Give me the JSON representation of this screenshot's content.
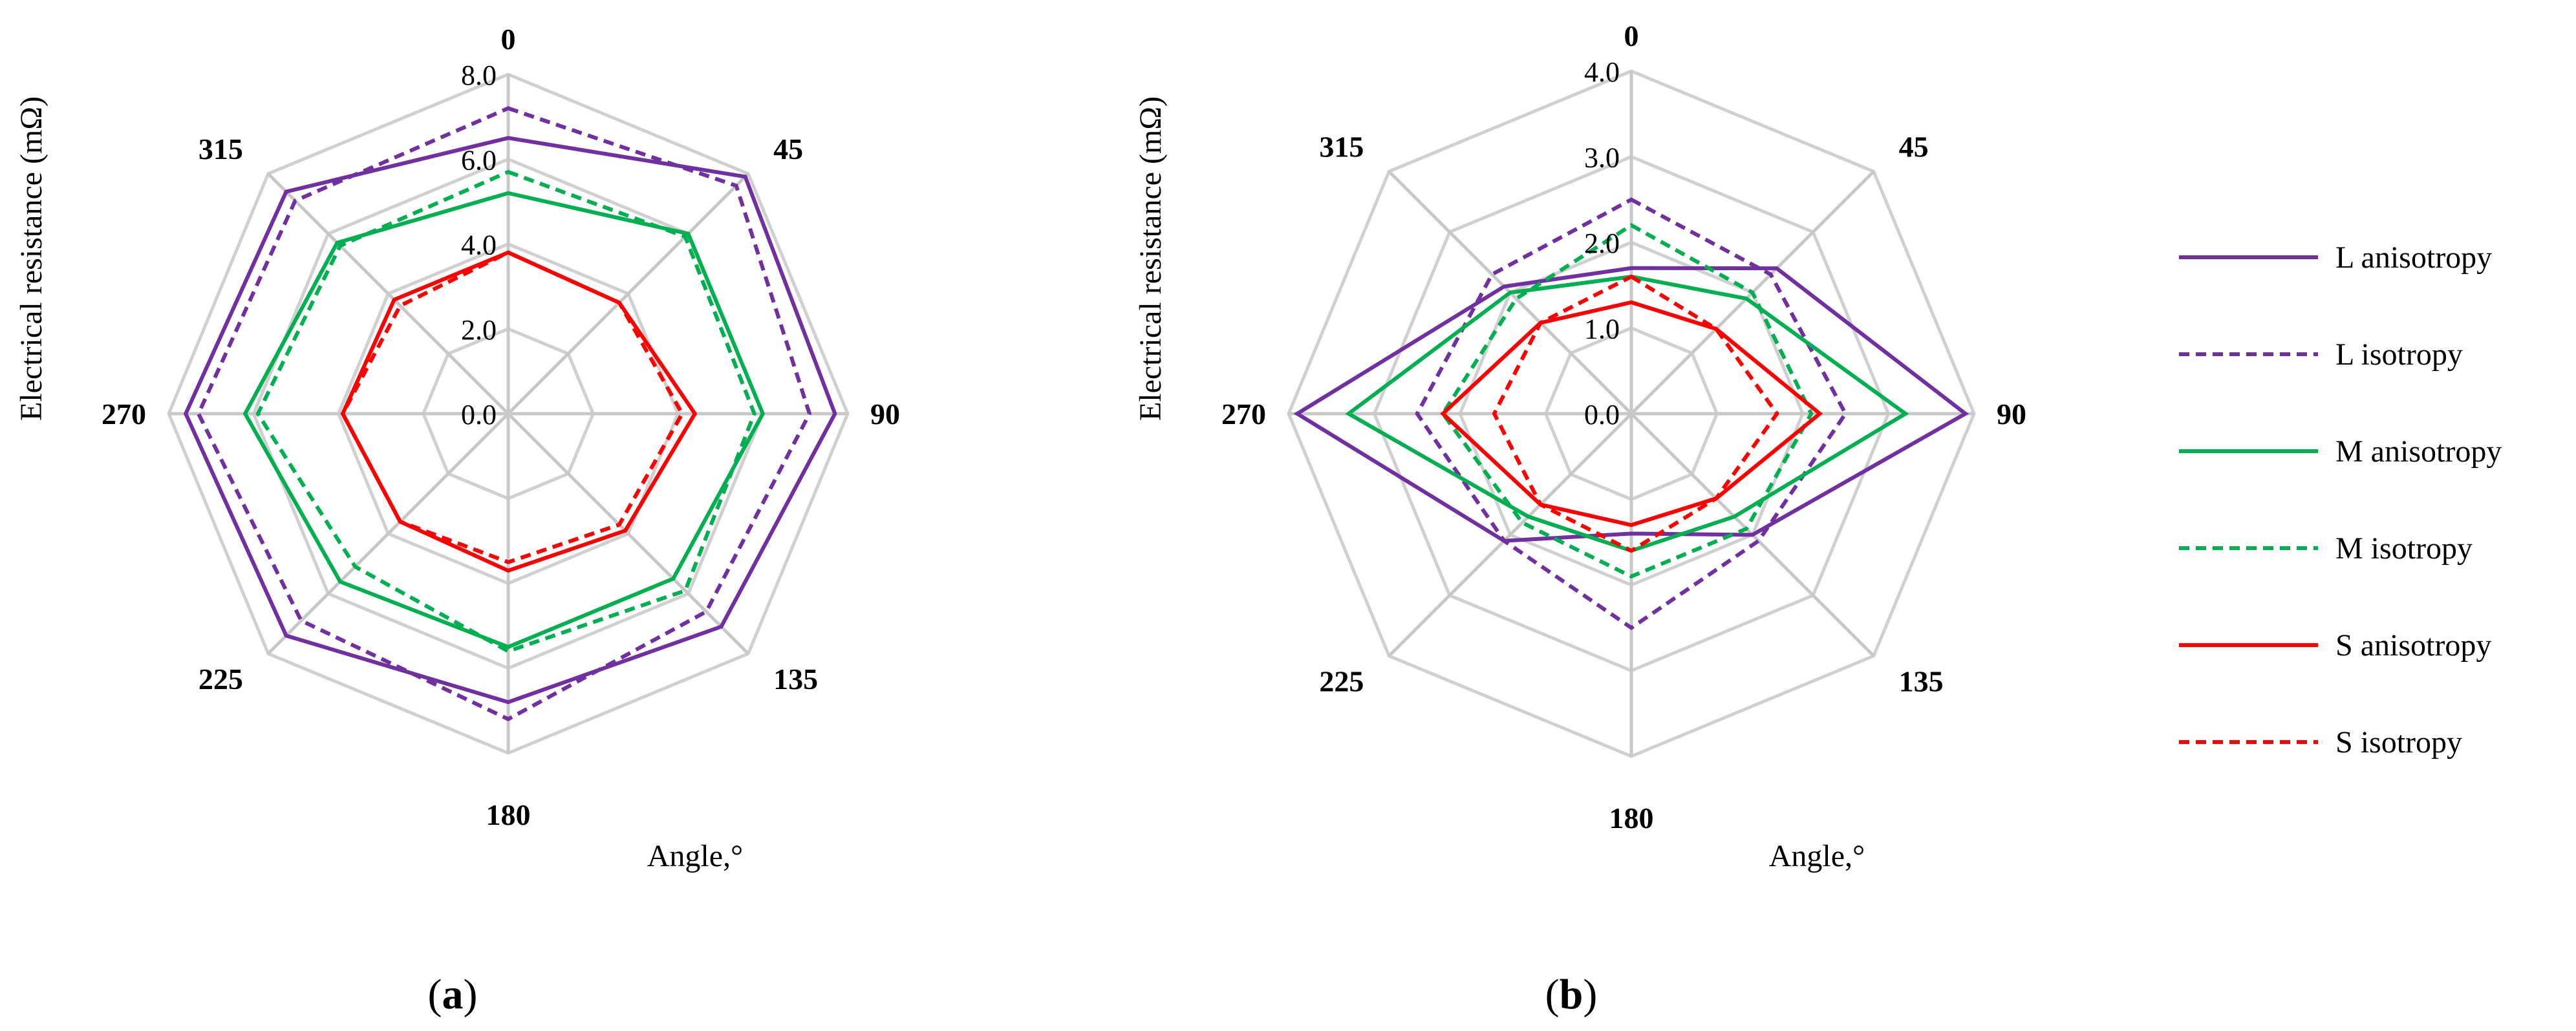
{
  "figure": {
    "panel_labels": [
      "(a)",
      "(b)"
    ],
    "panel_labels_bold_letter": [
      "a",
      "b"
    ]
  },
  "chart_data": [
    {
      "type": "radar",
      "panel": "(a)",
      "ylabel": "Electrical resistance (mΩ)",
      "xlabel": "Angle,°",
      "categories": [
        "0",
        "45",
        "90",
        "135",
        "180",
        "225",
        "270",
        "315"
      ],
      "radial_ticks": [
        "0.0",
        "2.0",
        "4.0",
        "6.0",
        "8.0"
      ],
      "rlim": [
        0,
        8
      ],
      "grid": true,
      "series": [
        {
          "name": "L anisotropy",
          "color": "#7030A0",
          "dash": "solid",
          "values": [
            6.5,
            7.9,
            7.7,
            7.1,
            6.8,
            7.4,
            7.6,
            7.4
          ]
        },
        {
          "name": "L isotropy",
          "color": "#7030A0",
          "dash": "dashed",
          "values": [
            7.2,
            7.6,
            7.1,
            6.6,
            7.2,
            6.9,
            7.3,
            7.1
          ]
        },
        {
          "name": "M anisotropy",
          "color": "#00B050",
          "dash": "solid",
          "values": [
            5.2,
            6.0,
            6.0,
            5.5,
            5.5,
            5.6,
            6.2,
            5.7
          ]
        },
        {
          "name": "M isotropy",
          "color": "#00B050",
          "dash": "dashed",
          "values": [
            5.7,
            5.9,
            5.8,
            5.9,
            5.6,
            5.1,
            5.9,
            5.6
          ]
        },
        {
          "name": "S anisotropy",
          "color": "#FF0000",
          "dash": "solid",
          "values": [
            3.8,
            3.7,
            4.4,
            3.9,
            3.7,
            3.6,
            3.9,
            3.8
          ]
        },
        {
          "name": "S isotropy",
          "color": "#FF0000",
          "dash": "dashed",
          "values": [
            3.8,
            3.7,
            4.1,
            3.7,
            3.5,
            3.6,
            3.9,
            3.6
          ]
        }
      ]
    },
    {
      "type": "radar",
      "panel": "(b)",
      "ylabel": "Electrical resistance (mΩ)",
      "xlabel": "Angle,°",
      "categories": [
        "0",
        "45",
        "90",
        "135",
        "180",
        "225",
        "270",
        "315"
      ],
      "radial_ticks": [
        "0.0",
        "1.0",
        "2.0",
        "3.0",
        "4.0"
      ],
      "rlim": [
        0,
        4
      ],
      "grid": true,
      "series": [
        {
          "name": "L anisotropy",
          "color": "#7030A0",
          "dash": "solid",
          "values": [
            1.7,
            2.4,
            3.9,
            2.0,
            1.4,
            2.1,
            3.9,
            2.1
          ]
        },
        {
          "name": "L isotropy",
          "color": "#7030A0",
          "dash": "dashed",
          "values": [
            2.5,
            2.3,
            2.5,
            2.1,
            2.5,
            2.1,
            2.5,
            2.3
          ]
        },
        {
          "name": "M anisotropy",
          "color": "#00B050",
          "dash": "solid",
          "values": [
            1.6,
            1.9,
            3.2,
            1.7,
            1.6,
            1.7,
            3.3,
            2.0
          ]
        },
        {
          "name": "M isotropy",
          "color": "#00B050",
          "dash": "dashed",
          "values": [
            2.2,
            2.0,
            2.1,
            1.9,
            1.9,
            1.8,
            2.2,
            1.9
          ]
        },
        {
          "name": "S anisotropy",
          "color": "#FF0000",
          "dash": "solid",
          "values": [
            1.3,
            1.4,
            2.2,
            1.4,
            1.3,
            1.5,
            2.2,
            1.5
          ]
        },
        {
          "name": "S isotropy",
          "color": "#FF0000",
          "dash": "dashed",
          "values": [
            1.6,
            1.4,
            1.7,
            1.4,
            1.6,
            1.5,
            1.6,
            1.5
          ]
        }
      ]
    }
  ],
  "legend": {
    "position": "right",
    "entries": [
      {
        "label": "L anisotropy",
        "color": "#7030A0",
        "dash": "solid"
      },
      {
        "label": "L isotropy",
        "color": "#7030A0",
        "dash": "dashed"
      },
      {
        "label": "M anisotropy",
        "color": "#00B050",
        "dash": "solid"
      },
      {
        "label": "M isotropy",
        "color": "#00B050",
        "dash": "dashed"
      },
      {
        "label": "S anisotropy",
        "color": "#FF0000",
        "dash": "solid"
      },
      {
        "label": "S isotropy",
        "color": "#FF0000",
        "dash": "dashed"
      }
    ]
  }
}
